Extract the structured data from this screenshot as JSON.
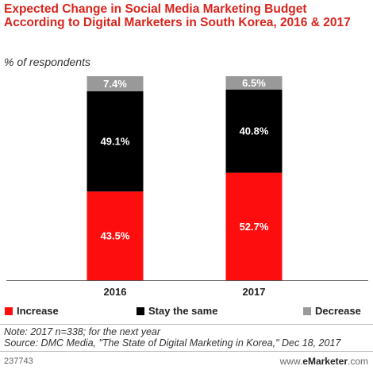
{
  "header": {
    "title": "Expected Change in Social Media Marketing Budget According to Digital Marketers in South Korea, 2016 & 2017",
    "subtitle": "% of respondents"
  },
  "chart_data": {
    "type": "bar",
    "stacked": true,
    "categories": [
      "2016",
      "2017"
    ],
    "series": [
      {
        "name": "Increase",
        "values": [
          43.5,
          52.7
        ],
        "color": "#fd0d0d",
        "label_color": "#ffffff",
        "labels": [
          "43.5%",
          "52.7%"
        ]
      },
      {
        "name": "Stay the same",
        "values": [
          49.1,
          40.8
        ],
        "color": "#000000",
        "label_color": "#ffffff",
        "labels": [
          "49.1%",
          "40.8%"
        ]
      },
      {
        "name": "Decrease",
        "values": [
          7.4,
          6.5
        ],
        "color": "#999999",
        "label_color": "#ffffff",
        "labels": [
          "7.4%",
          "6.5%"
        ]
      }
    ],
    "ylim": [
      0,
      100
    ],
    "grid": false,
    "legend_placement": "bottom"
  },
  "legend": [
    {
      "label": "Increase",
      "color": "#fd0d0d"
    },
    {
      "label": "Stay the same",
      "color": "#000000"
    },
    {
      "label": "Decrease",
      "color": "#999999"
    }
  ],
  "footer": {
    "note": "Note: 2017 n=338; for the next year",
    "source": "Source: DMC Media, \"The State of Digital Marketing in Korea,\" Dec 18, 2017",
    "chart_id": "237743",
    "brand_prefix": "www.",
    "brand_name": "eMarketer",
    "brand_suffix": ".com"
  }
}
